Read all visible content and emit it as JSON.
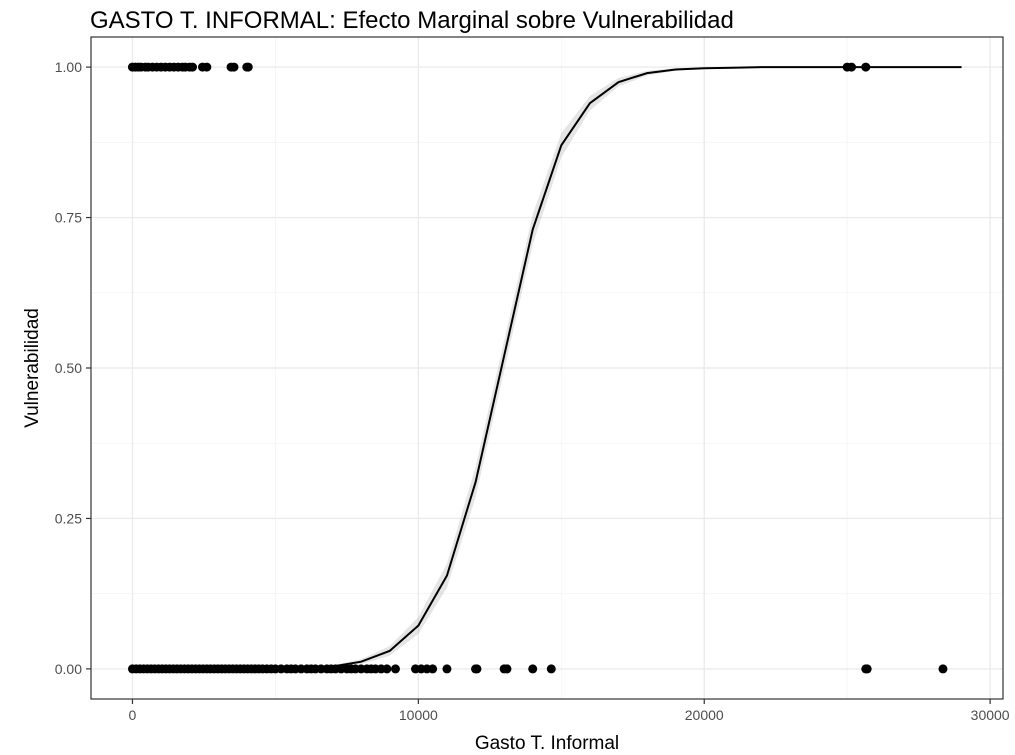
{
  "chart_data": {
    "type": "scatter",
    "title": "GASTO T. INFORMAL: Efecto Marginal sobre Vulnerabilidad",
    "xlabel": "Gasto T. Informal",
    "ylabel": "Vulnerabilidad",
    "xlim": [
      -1450,
      30450
    ],
    "ylim": [
      -0.05,
      1.05
    ],
    "x_ticks": [
      0,
      10000,
      20000,
      30000
    ],
    "x_tick_labels": [
      "0",
      "10000",
      "20000",
      "30000"
    ],
    "y_ticks": [
      0,
      0.25,
      0.5,
      0.75,
      1.0
    ],
    "y_tick_labels": [
      "0.00",
      "0.25",
      "0.50",
      "0.75",
      "1.00"
    ],
    "x_minor_ticks": [
      5000,
      15000,
      25000
    ],
    "y_minor_ticks": [
      0.125,
      0.375,
      0.625,
      0.875
    ],
    "grid": true,
    "series": [
      {
        "kind": "points",
        "points": [
          {
            "x": 0,
            "y": 1
          },
          {
            "x": 100,
            "y": 1
          },
          {
            "x": 200,
            "y": 1
          },
          {
            "x": 300,
            "y": 1
          },
          {
            "x": 450,
            "y": 1
          },
          {
            "x": 550,
            "y": 1
          },
          {
            "x": 700,
            "y": 1
          },
          {
            "x": 850,
            "y": 1
          },
          {
            "x": 1000,
            "y": 1
          },
          {
            "x": 1150,
            "y": 1
          },
          {
            "x": 1300,
            "y": 1
          },
          {
            "x": 1450,
            "y": 1
          },
          {
            "x": 1600,
            "y": 1
          },
          {
            "x": 1750,
            "y": 1
          },
          {
            "x": 1850,
            "y": 1
          },
          {
            "x": 2000,
            "y": 1
          },
          {
            "x": 2100,
            "y": 1
          },
          {
            "x": 2450,
            "y": 1
          },
          {
            "x": 2600,
            "y": 1
          },
          {
            "x": 3450,
            "y": 1
          },
          {
            "x": 3550,
            "y": 1
          },
          {
            "x": 4000,
            "y": 1
          },
          {
            "x": 4050,
            "y": 1
          },
          {
            "x": 25000,
            "y": 1
          },
          {
            "x": 25150,
            "y": 1
          },
          {
            "x": 25650,
            "y": 1
          },
          {
            "x": 0,
            "y": 0
          },
          {
            "x": 130,
            "y": 0
          },
          {
            "x": 260,
            "y": 0
          },
          {
            "x": 390,
            "y": 0
          },
          {
            "x": 520,
            "y": 0
          },
          {
            "x": 650,
            "y": 0
          },
          {
            "x": 780,
            "y": 0
          },
          {
            "x": 910,
            "y": 0
          },
          {
            "x": 1040,
            "y": 0
          },
          {
            "x": 1170,
            "y": 0
          },
          {
            "x": 1300,
            "y": 0
          },
          {
            "x": 1430,
            "y": 0
          },
          {
            "x": 1560,
            "y": 0
          },
          {
            "x": 1690,
            "y": 0
          },
          {
            "x": 1820,
            "y": 0
          },
          {
            "x": 1950,
            "y": 0
          },
          {
            "x": 2080,
            "y": 0
          },
          {
            "x": 2210,
            "y": 0
          },
          {
            "x": 2340,
            "y": 0
          },
          {
            "x": 2470,
            "y": 0
          },
          {
            "x": 2600,
            "y": 0
          },
          {
            "x": 2730,
            "y": 0
          },
          {
            "x": 2860,
            "y": 0
          },
          {
            "x": 2990,
            "y": 0
          },
          {
            "x": 3120,
            "y": 0
          },
          {
            "x": 3250,
            "y": 0
          },
          {
            "x": 3380,
            "y": 0
          },
          {
            "x": 3510,
            "y": 0
          },
          {
            "x": 3640,
            "y": 0
          },
          {
            "x": 3770,
            "y": 0
          },
          {
            "x": 3900,
            "y": 0
          },
          {
            "x": 4030,
            "y": 0
          },
          {
            "x": 4160,
            "y": 0
          },
          {
            "x": 4290,
            "y": 0
          },
          {
            "x": 4420,
            "y": 0
          },
          {
            "x": 4550,
            "y": 0
          },
          {
            "x": 4700,
            "y": 0
          },
          {
            "x": 4850,
            "y": 0
          },
          {
            "x": 5000,
            "y": 0
          },
          {
            "x": 5200,
            "y": 0
          },
          {
            "x": 5400,
            "y": 0
          },
          {
            "x": 5550,
            "y": 0
          },
          {
            "x": 5700,
            "y": 0
          },
          {
            "x": 5900,
            "y": 0
          },
          {
            "x": 6100,
            "y": 0
          },
          {
            "x": 6250,
            "y": 0
          },
          {
            "x": 6400,
            "y": 0
          },
          {
            "x": 6600,
            "y": 0
          },
          {
            "x": 6800,
            "y": 0
          },
          {
            "x": 6950,
            "y": 0
          },
          {
            "x": 7100,
            "y": 0
          },
          {
            "x": 7300,
            "y": 0
          },
          {
            "x": 7500,
            "y": 0
          },
          {
            "x": 7650,
            "y": 0
          },
          {
            "x": 7800,
            "y": 0
          },
          {
            "x": 8000,
            "y": 0
          },
          {
            "x": 8200,
            "y": 0
          },
          {
            "x": 8350,
            "y": 0
          },
          {
            "x": 8500,
            "y": 0
          },
          {
            "x": 8700,
            "y": 0
          },
          {
            "x": 8900,
            "y": 0
          },
          {
            "x": 9200,
            "y": 0
          },
          {
            "x": 9900,
            "y": 0
          },
          {
            "x": 10100,
            "y": 0
          },
          {
            "x": 10300,
            "y": 0
          },
          {
            "x": 10500,
            "y": 0
          },
          {
            "x": 11000,
            "y": 0
          },
          {
            "x": 12000,
            "y": 0
          },
          {
            "x": 12050,
            "y": 0
          },
          {
            "x": 13000,
            "y": 0
          },
          {
            "x": 13100,
            "y": 0
          },
          {
            "x": 14000,
            "y": 0
          },
          {
            "x": 14650,
            "y": 0
          },
          {
            "x": 25650,
            "y": 0
          },
          {
            "x": 25700,
            "y": 0
          },
          {
            "x": 28350,
            "y": 0
          }
        ]
      },
      {
        "kind": "fitted_curve",
        "x": [
          0,
          1000,
          2000,
          3000,
          4000,
          5000,
          6000,
          7000,
          8000,
          9000,
          10000,
          11000,
          12000,
          13000,
          14000,
          15000,
          16000,
          17000,
          18000,
          19000,
          20000,
          21000,
          22000,
          23000,
          24000,
          25000,
          26000,
          27000,
          28000,
          29000
        ],
        "y": [
          0.0,
          0.0,
          0.0,
          0.0,
          0.0,
          0.0,
          0.001,
          0.004,
          0.012,
          0.03,
          0.072,
          0.155,
          0.31,
          0.52,
          0.73,
          0.87,
          0.94,
          0.975,
          0.99,
          0.996,
          0.998,
          0.999,
          1.0,
          1.0,
          1.0,
          1.0,
          1.0,
          1.0,
          1.0,
          1.0
        ],
        "ci_lower": [
          0.0,
          0.0,
          0.0,
          0.0,
          0.0,
          0.0,
          0.0,
          0.002,
          0.008,
          0.022,
          0.058,
          0.135,
          0.285,
          0.495,
          0.705,
          0.85,
          0.928,
          0.968,
          0.986,
          0.994,
          0.997,
          0.998,
          0.999,
          1.0,
          1.0,
          1.0,
          1.0,
          1.0,
          1.0,
          1.0
        ],
        "ci_upper": [
          0.0,
          0.0,
          0.0,
          0.0,
          0.0,
          0.0,
          0.002,
          0.006,
          0.016,
          0.038,
          0.086,
          0.175,
          0.335,
          0.545,
          0.755,
          0.89,
          0.952,
          0.982,
          0.994,
          0.998,
          0.999,
          1.0,
          1.0,
          1.0,
          1.0,
          1.0,
          1.0,
          1.0,
          1.0,
          1.0
        ]
      }
    ]
  }
}
